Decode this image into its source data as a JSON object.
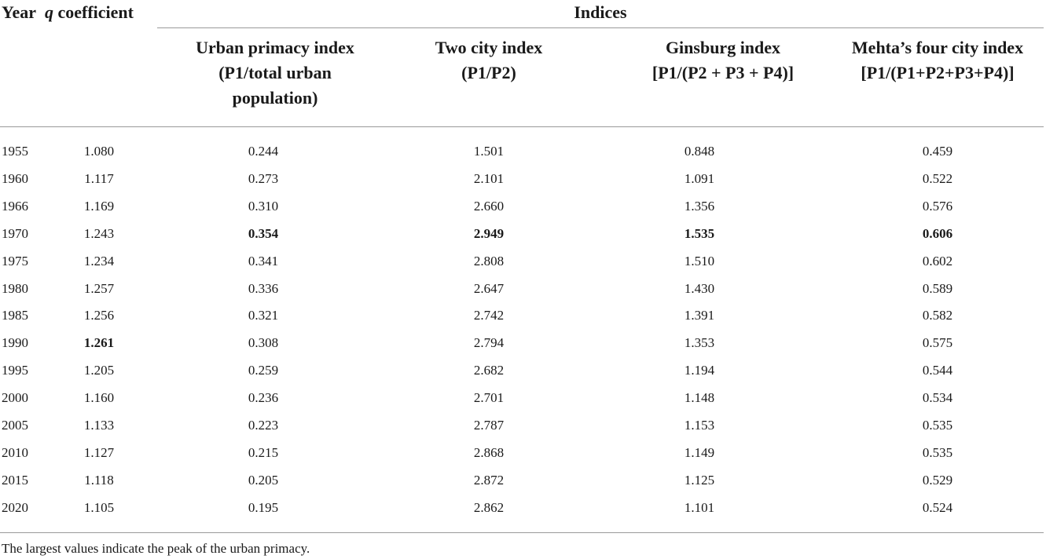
{
  "table": {
    "headers": {
      "year": "Year",
      "q_symbol": "q",
      "q_rest": "coefficient",
      "indices": "Indices",
      "urban_primacy": [
        "Urban primacy index",
        "(P1/total urban",
        "population)"
      ],
      "two_city": [
        "Two city index",
        "(P1/P2)"
      ],
      "ginsburg": [
        "Ginsburg index",
        "[P1/(P2 + P3 + P4)]"
      ],
      "mehta": [
        "Mehta’s four city index",
        "[P1/(P1+P2+P3+P4)]"
      ]
    },
    "rows": [
      {
        "year": "1955",
        "q": "1.080",
        "urban": "0.244",
        "two": "1.501",
        "gins": "0.848",
        "mehta": "0.459"
      },
      {
        "year": "1960",
        "q": "1.117",
        "urban": "0.273",
        "two": "2.101",
        "gins": "1.091",
        "mehta": "0.522"
      },
      {
        "year": "1966",
        "q": "1.169",
        "urban": "0.310",
        "two": "2.660",
        "gins": "1.356",
        "mehta": "0.576"
      },
      {
        "year": "1970",
        "q": "1.243",
        "urban": "0.354",
        "two": "2.949",
        "gins": "1.535",
        "mehta": "0.606"
      },
      {
        "year": "1975",
        "q": "1.234",
        "urban": "0.341",
        "two": "2.808",
        "gins": "1.510",
        "mehta": "0.602"
      },
      {
        "year": "1980",
        "q": "1.257",
        "urban": "0.336",
        "two": "2.647",
        "gins": "1.430",
        "mehta": "0.589"
      },
      {
        "year": "1985",
        "q": "1.256",
        "urban": "0.321",
        "two": "2.742",
        "gins": "1.391",
        "mehta": "0.582"
      },
      {
        "year": "1990",
        "q": "1.261",
        "urban": "0.308",
        "two": "2.794",
        "gins": "1.353",
        "mehta": "0.575"
      },
      {
        "year": "1995",
        "q": "1.205",
        "urban": "0.259",
        "two": "2.682",
        "gins": "1.194",
        "mehta": "0.544"
      },
      {
        "year": "2000",
        "q": "1.160",
        "urban": "0.236",
        "two": "2.701",
        "gins": "1.148",
        "mehta": "0.534"
      },
      {
        "year": "2005",
        "q": "1.133",
        "urban": "0.223",
        "two": "2.787",
        "gins": "1.153",
        "mehta": "0.535"
      },
      {
        "year": "2010",
        "q": "1.127",
        "urban": "0.215",
        "two": "2.868",
        "gins": "1.149",
        "mehta": "0.535"
      },
      {
        "year": "2015",
        "q": "1.118",
        "urban": "0.205",
        "two": "2.872",
        "gins": "1.125",
        "mehta": "0.529"
      },
      {
        "year": "2020",
        "q": "1.105",
        "urban": "0.195",
        "two": "2.862",
        "gins": "1.101",
        "mehta": "0.524"
      }
    ],
    "bold_cells": [
      {
        "row": 3,
        "key": "urban"
      },
      {
        "row": 3,
        "key": "two"
      },
      {
        "row": 3,
        "key": "gins"
      },
      {
        "row": 3,
        "key": "mehta"
      },
      {
        "row": 7,
        "key": "q"
      }
    ],
    "footnote": "The largest values indicate the peak of the urban primacy."
  }
}
